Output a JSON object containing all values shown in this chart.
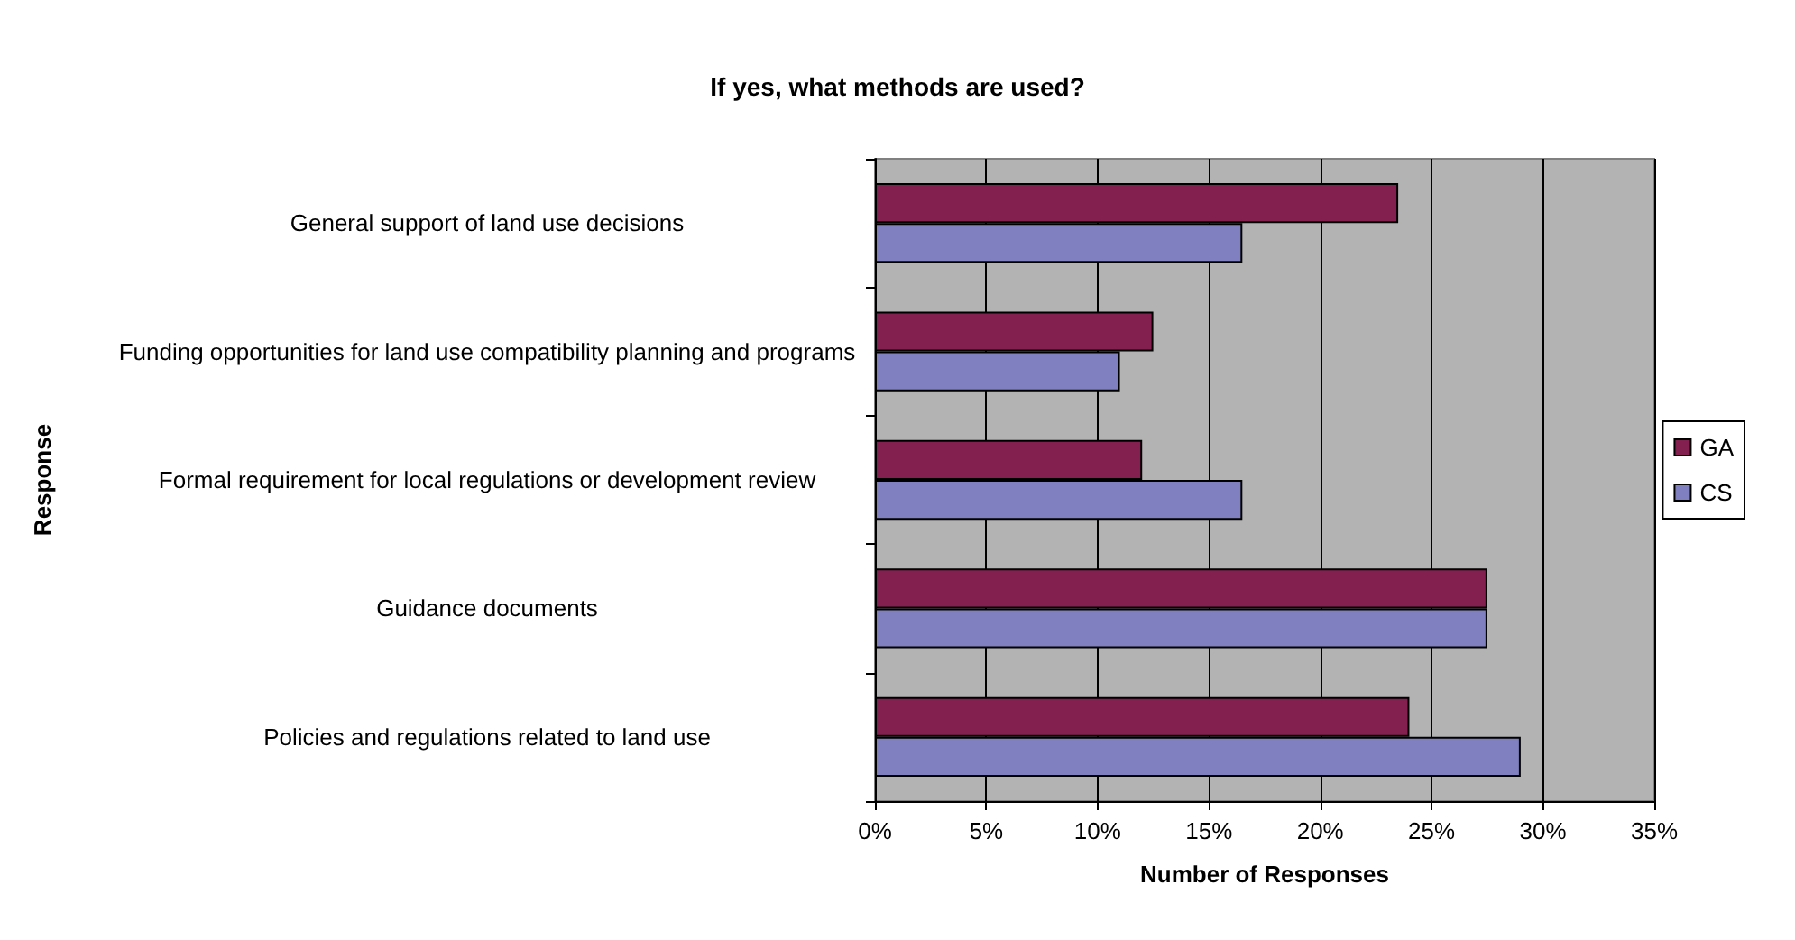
{
  "chart_data": {
    "type": "bar",
    "orientation": "horizontal",
    "title": "If yes, what methods are used?",
    "xlabel": "Number of Responses",
    "ylabel": "Response",
    "categories": [
      "General support of land use decisions",
      "Funding opportunities for land use compatibility planning and programs",
      "Formal requirement for local regulations or development review",
      "Guidance documents",
      "Policies and regulations related to land use"
    ],
    "series": [
      {
        "name": "GA",
        "color": "#842050",
        "values": [
          23.5,
          12.5,
          12,
          27.5,
          24
        ]
      },
      {
        "name": "CS",
        "color": "#8080c0",
        "values": [
          16.5,
          11,
          16.5,
          27.5,
          29
        ]
      }
    ],
    "xlim": [
      0,
      35
    ],
    "xticks": [
      {
        "value": 0,
        "label": "0%"
      },
      {
        "value": 5,
        "label": "5%"
      },
      {
        "value": 10,
        "label": "10%"
      },
      {
        "value": 15,
        "label": "15%"
      },
      {
        "value": 20,
        "label": "20%"
      },
      {
        "value": 25,
        "label": "25%"
      },
      {
        "value": 30,
        "label": "30%"
      },
      {
        "value": 35,
        "label": "35%"
      }
    ],
    "grid": "x",
    "legend": "right"
  }
}
